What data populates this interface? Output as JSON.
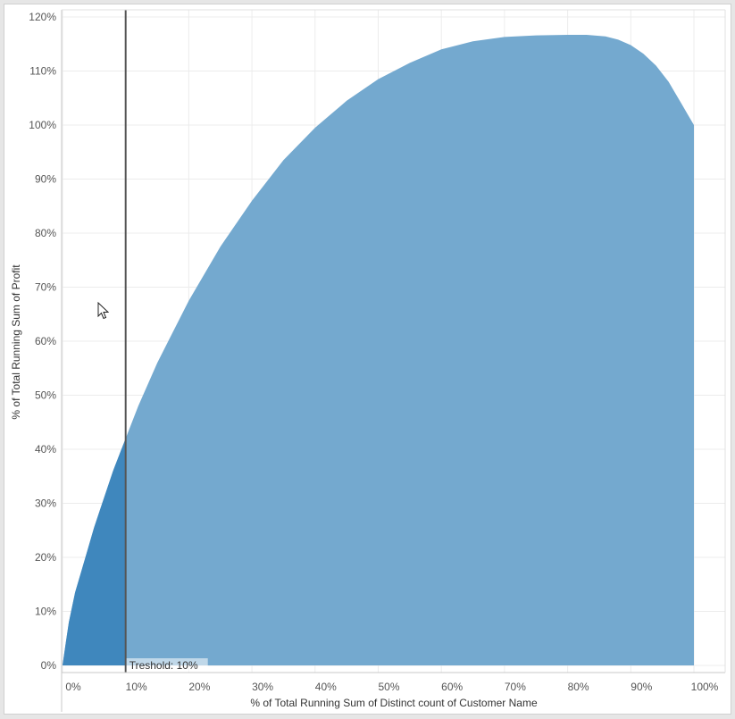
{
  "chart_data": {
    "type": "area",
    "xlabel": "% of Total Running Sum of Distinct count of Customer Name",
    "ylabel": "% of Total Running Sum of Profit",
    "xlim": [
      0,
      100
    ],
    "ylim": [
      0,
      122
    ],
    "x_ticks": [
      0,
      10,
      20,
      30,
      40,
      50,
      60,
      70,
      80,
      90,
      100
    ],
    "x_tick_labels": [
      "0%",
      "10%",
      "20%",
      "30%",
      "40%",
      "50%",
      "60%",
      "70%",
      "80%",
      "90%",
      "100%"
    ],
    "y_ticks": [
      0,
      10,
      20,
      30,
      40,
      50,
      60,
      70,
      80,
      90,
      100,
      110,
      120
    ],
    "y_tick_labels": [
      "0%",
      "10%",
      "20%",
      "30%",
      "40%",
      "50%",
      "60%",
      "70%",
      "80%",
      "90%",
      "100%",
      "110%",
      "120%"
    ],
    "grid": true,
    "series": [
      {
        "x": [
          0,
          0.5,
          1,
          2,
          3,
          4,
          5,
          6,
          7,
          8,
          9,
          10,
          12,
          15,
          20,
          25,
          30,
          35,
          40,
          45,
          50,
          55,
          60,
          65,
          70,
          75,
          80,
          83,
          86,
          88,
          90,
          92,
          94,
          96,
          97,
          98,
          99,
          99.5,
          100
        ],
        "y": [
          0,
          4,
          8,
          13.5,
          17.5,
          21.5,
          25.5,
          29,
          32.5,
          36,
          39,
          42,
          48,
          56,
          67.5,
          77.5,
          86,
          93.5,
          99.5,
          104.5,
          108.5,
          111.5,
          114,
          115.5,
          116.3,
          116.6,
          116.7,
          116.7,
          116.4,
          115.8,
          114.8,
          113.2,
          111,
          108,
          106,
          104,
          102,
          101,
          100
        ]
      }
    ],
    "highlight_below_x": 10,
    "reference_line": {
      "x": 10,
      "label": "Treshold: 10%"
    },
    "colors": {
      "area": "#74a9cf",
      "area_highlight": "#3f87bd",
      "reference_line": "#555555",
      "grid": "#ececec"
    }
  }
}
